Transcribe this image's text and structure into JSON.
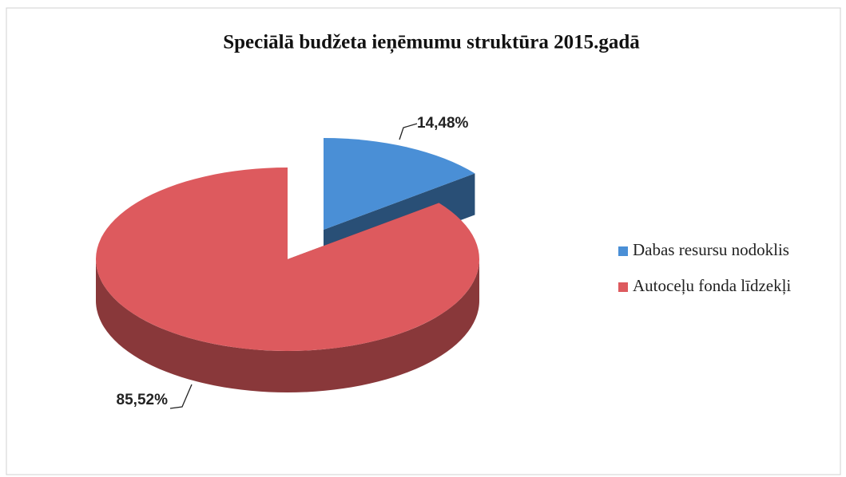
{
  "chart_data": {
    "type": "pie3d",
    "title": "Speciālā budžeta ieņēmumu struktūra 2015.gadā",
    "categories": [
      "Dabas resursu nodoklis",
      "Autoceļu fonda līdzekļi"
    ],
    "values": [
      14.48,
      85.52
    ],
    "value_labels": [
      "14,48%",
      "85,52%"
    ],
    "colors": [
      "#4a8fd6",
      "#dd5a5e"
    ],
    "legend": "right"
  }
}
